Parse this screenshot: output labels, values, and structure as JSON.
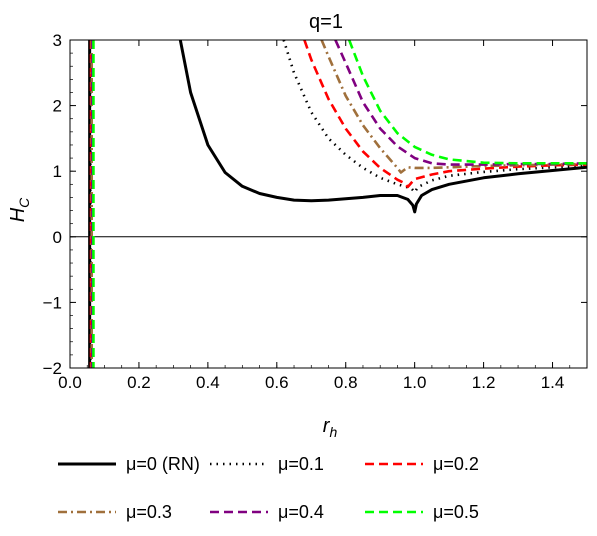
{
  "chart_data": {
    "type": "line",
    "title": "q=1",
    "xlabel": "r",
    "xlabel_sub": "h",
    "ylabel": "H",
    "ylabel_sub": "C",
    "xlim": [
      0.0,
      1.5
    ],
    "ylim": [
      -2,
      3
    ],
    "x_ticks": [
      0.0,
      0.2,
      0.4,
      0.6,
      0.8,
      1.0,
      1.2,
      1.4
    ],
    "x_tick_labels": [
      "0.0",
      "0.2",
      "0.4",
      "0.6",
      "0.8",
      "1.0",
      "1.2",
      "1.4"
    ],
    "y_ticks": [
      -2,
      -1,
      0,
      1,
      2,
      3
    ],
    "y_tick_labels": [
      "−2",
      "−1",
      "0",
      "1",
      "2",
      "3"
    ],
    "grid": false,
    "legend_position": "bottom",
    "series": [
      {
        "name": "μ=0 (RN)",
        "color": "#000000",
        "style": "solid",
        "x": [
          0.32,
          0.35,
          0.4,
          0.45,
          0.5,
          0.55,
          0.6,
          0.65,
          0.7,
          0.75,
          0.8,
          0.85,
          0.9,
          0.95,
          0.98,
          0.995,
          1.0,
          1.005,
          1.02,
          1.05,
          1.1,
          1.2,
          1.3,
          1.4,
          1.5
        ],
        "y": [
          3.0,
          2.2,
          1.4,
          0.98,
          0.77,
          0.66,
          0.6,
          0.56,
          0.55,
          0.56,
          0.58,
          0.6,
          0.63,
          0.63,
          0.57,
          0.48,
          0.38,
          0.5,
          0.63,
          0.72,
          0.8,
          0.9,
          0.96,
          1.01,
          1.06
        ]
      },
      {
        "name": "μ=0.1",
        "color": "#000000",
        "style": "dotted",
        "x": [
          0.62,
          0.65,
          0.7,
          0.75,
          0.8,
          0.85,
          0.9,
          0.95,
          0.99,
          1.0,
          1.01,
          1.05,
          1.1,
          1.2,
          1.3,
          1.4,
          1.5
        ],
        "y": [
          3.0,
          2.5,
          1.9,
          1.5,
          1.25,
          1.05,
          0.9,
          0.8,
          0.74,
          0.68,
          0.76,
          0.86,
          0.93,
          0.99,
          1.03,
          1.06,
          1.08
        ]
      },
      {
        "name": "μ=0.2",
        "color": "#ff0000",
        "style": "dashed",
        "x": [
          0.68,
          0.7,
          0.75,
          0.8,
          0.85,
          0.9,
          0.95,
          0.97,
          0.98,
          0.99,
          1.0,
          1.05,
          1.1,
          1.2,
          1.3,
          1.4,
          1.5
        ],
        "y": [
          3.0,
          2.7,
          2.1,
          1.65,
          1.3,
          1.05,
          0.87,
          0.82,
          0.76,
          0.82,
          0.88,
          0.95,
          1.0,
          1.04,
          1.07,
          1.09,
          1.1
        ]
      },
      {
        "name": "μ=0.3",
        "color": "#a0703c",
        "style": "dashdot",
        "x": [
          0.73,
          0.75,
          0.8,
          0.85,
          0.9,
          0.93,
          0.95,
          0.96,
          0.97,
          0.98,
          1.0,
          1.05,
          1.1,
          1.2,
          1.3,
          1.4,
          1.5
        ],
        "y": [
          3.0,
          2.75,
          2.15,
          1.7,
          1.35,
          1.17,
          1.05,
          0.98,
          1.02,
          1.06,
          1.05,
          1.05,
          1.06,
          1.08,
          1.09,
          1.1,
          1.11
        ]
      },
      {
        "name": "μ=0.4",
        "color": "#800080",
        "style": "dashed",
        "x": [
          0.77,
          0.8,
          0.85,
          0.9,
          0.95,
          1.0,
          1.05,
          1.1,
          1.2,
          1.3,
          1.4,
          1.5
        ],
        "y": [
          3.0,
          2.65,
          2.05,
          1.65,
          1.38,
          1.2,
          1.12,
          1.1,
          1.1,
          1.11,
          1.11,
          1.12
        ]
      },
      {
        "name": "μ=0.5",
        "color": "#00ff00",
        "style": "dashed",
        "x": [
          0.81,
          0.85,
          0.9,
          0.95,
          1.0,
          1.05,
          1.1,
          1.2,
          1.3,
          1.4,
          1.5
        ],
        "y": [
          3.0,
          2.45,
          1.92,
          1.58,
          1.37,
          1.25,
          1.18,
          1.13,
          1.12,
          1.12,
          1.12
        ]
      }
    ],
    "vertical_lines": [
      {
        "series": "μ=0 (RN)",
        "x": 0.057
      },
      {
        "series": "μ=0.1",
        "x": 0.059
      },
      {
        "series": "μ=0.2",
        "x": 0.061
      },
      {
        "series": "μ=0.3",
        "x": 0.063
      },
      {
        "series": "μ=0.4",
        "x": 0.065
      },
      {
        "series": "μ=0.5",
        "x": 0.068
      }
    ],
    "legend": {
      "rows": [
        [
          "μ=0 (RN)",
          "μ=0.1",
          "μ=0.2"
        ],
        [
          "μ=0.3",
          "μ=0.4",
          "μ=0.5"
        ]
      ]
    }
  }
}
